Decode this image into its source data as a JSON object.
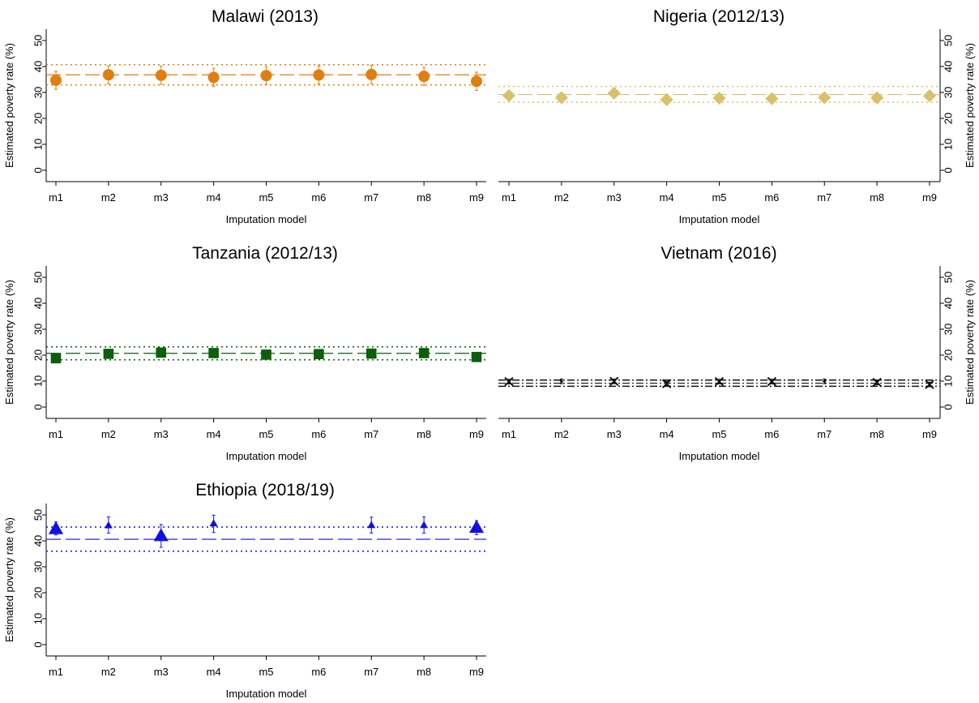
{
  "chart_data": [
    {
      "type": "scatter",
      "title": "Malawi (2013)",
      "xlabel": "Imputation model",
      "ylabel": "Estimated poverty rate (%)",
      "categories": [
        "m1",
        "m2",
        "m3",
        "m4",
        "m5",
        "m6",
        "m7",
        "m8",
        "m9"
      ],
      "ylim": [
        0,
        50
      ],
      "yticks": [
        "0",
        "10",
        "20",
        "30",
        "40",
        "50"
      ],
      "y_axis_side": "left",
      "color": "#e07f0f",
      "marker": "circle",
      "values": [
        34.7,
        36.8,
        36.6,
        35.8,
        36.5,
        36.7,
        36.9,
        36.2,
        34.3
      ],
      "ci_low": [
        31.2,
        33.3,
        33.1,
        32.3,
        33.0,
        33.2,
        33.4,
        32.7,
        30.8
      ],
      "ci_high": [
        38.2,
        40.3,
        40.1,
        39.3,
        40.0,
        40.2,
        40.4,
        39.7,
        37.8
      ],
      "marker_size": [
        1,
        1,
        1,
        1,
        1,
        1,
        1,
        1,
        1
      ],
      "reference_line": 36.8,
      "reference_ci": [
        32.9,
        40.7
      ]
    },
    {
      "type": "scatter",
      "title": "Nigeria (2012/13)",
      "xlabel": "Imputation model",
      "ylabel": "Estimated poverty rate (%)",
      "categories": [
        "m1",
        "m2",
        "m3",
        "m4",
        "m5",
        "m6",
        "m7",
        "m8",
        "m9"
      ],
      "ylim": [
        0,
        50
      ],
      "yticks": [
        "0",
        "10",
        "20",
        "30",
        "40",
        "50"
      ],
      "y_axis_side": "right",
      "color": "#d9c06a",
      "marker": "diamond",
      "values": [
        28.8,
        28.0,
        29.7,
        27.2,
        27.8,
        27.6,
        28.0,
        27.9,
        28.7
      ],
      "ci_low": [
        27.3,
        26.5,
        28.2,
        25.7,
        26.3,
        26.1,
        26.5,
        26.4,
        27.2
      ],
      "ci_high": [
        30.3,
        29.5,
        31.2,
        28.7,
        29.3,
        29.1,
        29.5,
        29.4,
        30.2
      ],
      "marker_size": [
        1,
        1,
        1,
        1,
        1,
        1,
        1,
        1,
        1
      ],
      "reference_line": 29.2,
      "reference_ci": [
        26.2,
        32.3
      ]
    },
    {
      "type": "scatter",
      "title": "Tanzania (2012/13)",
      "xlabel": "Imputation model",
      "ylabel": "Estimated poverty rate (%)",
      "categories": [
        "m1",
        "m2",
        "m3",
        "m4",
        "m5",
        "m6",
        "m7",
        "m8",
        "m9"
      ],
      "ylim": [
        0,
        50
      ],
      "yticks": [
        "0",
        "10",
        "20",
        "30",
        "40",
        "50"
      ],
      "y_axis_side": "left",
      "color": "#0b5e0b",
      "marker": "square",
      "values": [
        18.8,
        20.5,
        21.0,
        20.8,
        20.2,
        20.4,
        20.6,
        20.8,
        19.3
      ],
      "ci_low": [
        17.2,
        18.9,
        19.4,
        19.2,
        18.6,
        18.8,
        19.0,
        19.2,
        17.7
      ],
      "ci_high": [
        20.4,
        22.1,
        22.6,
        22.4,
        21.8,
        22.0,
        22.2,
        22.4,
        20.9
      ],
      "marker_size": [
        1,
        1,
        1,
        1,
        1,
        1,
        1,
        1,
        1
      ],
      "reference_line": 20.7,
      "reference_ci": [
        18.2,
        23.2
      ]
    },
    {
      "type": "scatter",
      "title": "Vietnam (2016)",
      "xlabel": "Imputation model",
      "ylabel": "Estimated poverty rate (%)",
      "categories": [
        "m1",
        "m2",
        "m3",
        "m4",
        "m5",
        "m6",
        "m7",
        "m8",
        "m9"
      ],
      "ylim": [
        0,
        50
      ],
      "yticks": [
        "0",
        "10",
        "20",
        "30",
        "40",
        "50"
      ],
      "y_axis_side": "right",
      "color": "#111111",
      "marker": "x",
      "values": [
        9.8,
        9.9,
        9.9,
        9.0,
        9.8,
        9.8,
        9.9,
        9.5,
        8.7
      ],
      "ci_low": [
        8.9,
        9.0,
        9.0,
        8.1,
        8.9,
        8.9,
        9.0,
        8.6,
        7.8
      ],
      "ci_high": [
        10.7,
        10.8,
        10.8,
        9.9,
        10.7,
        10.7,
        10.8,
        10.4,
        9.6
      ],
      "marker_size": [
        1,
        0.25,
        1,
        1,
        1,
        1,
        0.25,
        1,
        1
      ],
      "reference_line": 9.2,
      "reference_ci": [
        8.0,
        10.4
      ]
    },
    {
      "type": "scatter",
      "title": "Ethiopia (2018/19)",
      "xlabel": "Imputation model",
      "ylabel": "Estimated poverty rate (%)",
      "categories": [
        "m1",
        "m2",
        "m3",
        "m4",
        "m5",
        "m6",
        "m7",
        "m8",
        "m9"
      ],
      "ylim": [
        0,
        50
      ],
      "yticks": [
        "0",
        "10",
        "20",
        "30",
        "40",
        "50"
      ],
      "y_axis_side": "left",
      "color": "#1010e0",
      "marker": "triangle",
      "values": [
        44.7,
        46.0,
        42.0,
        46.8,
        null,
        null,
        46.1,
        46.1,
        45.2
      ],
      "ci_low": [
        42.3,
        43.0,
        37.5,
        43.2,
        null,
        null,
        43.0,
        43.0,
        42.4
      ],
      "ci_high": [
        47.3,
        49.2,
        46.3,
        49.9,
        null,
        null,
        49.1,
        49.2,
        47.8
      ],
      "marker_size": [
        1,
        0.55,
        1,
        0.55,
        0,
        0,
        0.55,
        0.55,
        1
      ],
      "reference_line": 40.6,
      "reference_ci": [
        36.0,
        45.3
      ]
    }
  ]
}
